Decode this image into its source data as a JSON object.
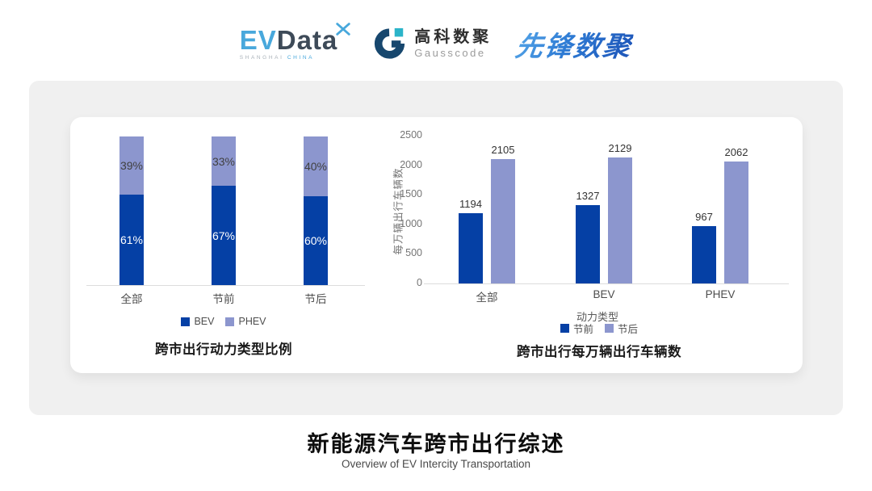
{
  "header": {
    "evdata_logo": {
      "ev": "EV",
      "data": "Data",
      "sub_left": "SHANGHAI",
      "sub_right": "CHINA"
    },
    "gausscode_logo": {
      "name_cn": "高科数聚",
      "name_en": "Gausscode"
    },
    "pioneer_logo": {
      "text": "先锋数聚"
    }
  },
  "icons": {
    "evdata_x": "four-petal x mark",
    "gausscode_g": "G arc mark"
  },
  "colors": {
    "series_dark_blue": "#0540A5",
    "series_light_blue": "#8C96CE",
    "card_background": "#F0F0F0",
    "evdata_cyan": "#48A8DC",
    "pioneer_blue": "#2E7BD4"
  },
  "chart_data": [
    {
      "type": "bar",
      "subtype": "stacked-percent",
      "title": "跨市出行动力类型比例",
      "categories": [
        "全部",
        "节前",
        "节后"
      ],
      "series": [
        {
          "name": "BEV",
          "color": "#0540A5",
          "values": [
            61,
            67,
            60
          ],
          "labels": [
            "61%",
            "67%",
            "60%"
          ],
          "label_color": "#FFFFFF"
        },
        {
          "name": "PHEV",
          "color": "#8C96CE",
          "values": [
            39,
            33,
            40
          ],
          "labels": [
            "39%",
            "33%",
            "40%"
          ],
          "label_color": "#404040"
        }
      ],
      "ylim": [
        0,
        100
      ],
      "grid": false,
      "legend_position": "bottom"
    },
    {
      "type": "bar",
      "subtype": "grouped",
      "title": "跨市出行每万辆出行车辆数",
      "categories": [
        "全部",
        "BEV",
        "PHEV"
      ],
      "xlabel": "动力类型",
      "ylabel": "每万辆出行车辆数",
      "yticks": [
        0,
        500,
        1000,
        1500,
        2000,
        2500
      ],
      "ylim": [
        0,
        2500
      ],
      "series": [
        {
          "name": "节前",
          "color": "#0540A5",
          "values": [
            1194,
            1327,
            967
          ]
        },
        {
          "name": "节后",
          "color": "#8C96CE",
          "values": [
            2105,
            2129,
            2062
          ]
        }
      ],
      "grid": false,
      "legend_position": "bottom"
    }
  ],
  "footer": {
    "title": "新能源汽车跨市出行综述",
    "subtitle": "Overview of EV Intercity Transportation"
  }
}
